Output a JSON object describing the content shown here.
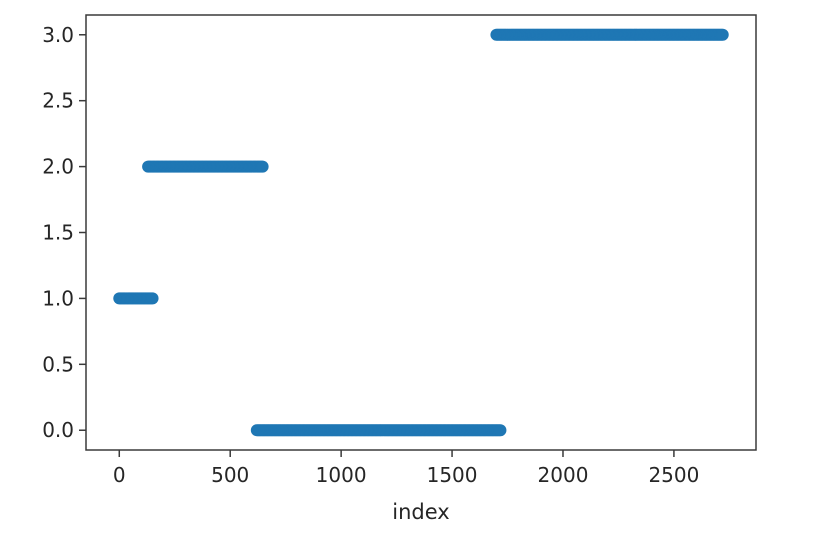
{
  "chart_data": {
    "type": "scatter",
    "title": "",
    "xlabel": "index",
    "ylabel": "",
    "xlim": [
      -150,
      2870
    ],
    "ylim": [
      -0.15,
      3.15
    ],
    "xticks": [
      0,
      500,
      1000,
      1500,
      2000,
      2500
    ],
    "xtick_labels": [
      "0",
      "500",
      "1000",
      "1500",
      "2000",
      "2500"
    ],
    "yticks": [
      0.0,
      0.5,
      1.0,
      1.5,
      2.0,
      2.5,
      3.0
    ],
    "ytick_labels": [
      "0.0",
      "0.5",
      "1.0",
      "1.5",
      "2.0",
      "2.5",
      "3.0"
    ],
    "grid": false,
    "marker_color": "#1f77b4",
    "series": [
      {
        "points_note": "dense runs of points at constant y",
        "segments": [
          {
            "x_start": 0,
            "x_end": 150,
            "y": 1.0
          },
          {
            "x_start": 130,
            "x_end": 650,
            "y": 2.0
          },
          {
            "x_start": 620,
            "x_end": 1720,
            "y": 0.0
          },
          {
            "x_start": 1700,
            "x_end": 2720,
            "y": 3.0
          }
        ]
      }
    ]
  }
}
